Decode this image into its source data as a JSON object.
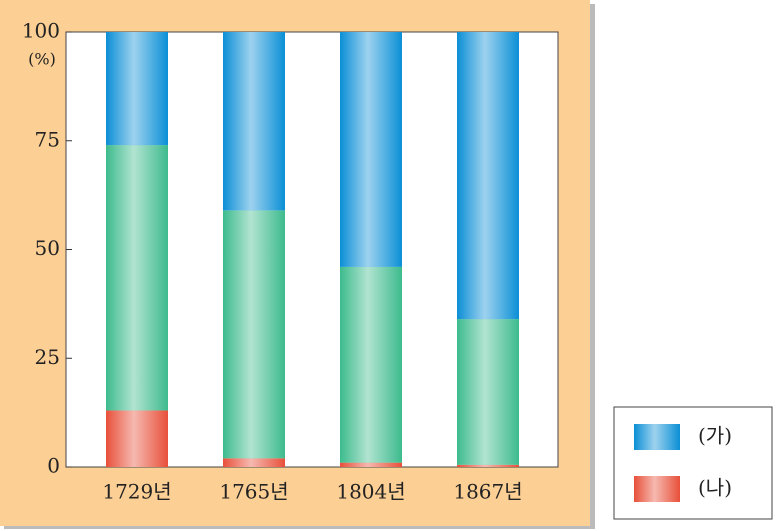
{
  "chart_data": {
    "type": "stacked_bar",
    "y_label": "(%)",
    "categories": [
      "1729년",
      "1765년",
      "1804년",
      "1867년"
    ],
    "series": [
      {
        "name": "(나)",
        "color": "#e8503a",
        "values": [
          13,
          2,
          1,
          0.5
        ]
      },
      {
        "color": "#3dbb8d",
        "values": [
          61,
          57,
          45,
          33.5
        ]
      },
      {
        "name": "(가)",
        "color": "#0b8fd6",
        "values": [
          26,
          41,
          54,
          66
        ]
      }
    ],
    "ylim": [
      0,
      100
    ],
    "yticks": [
      0,
      25,
      50,
      75,
      100
    ]
  }
}
